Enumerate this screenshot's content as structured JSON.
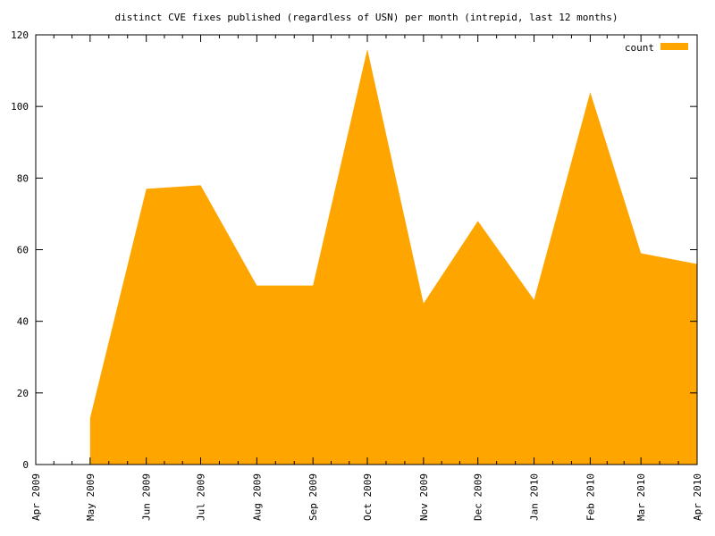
{
  "chart_data": {
    "type": "area",
    "title": "distinct CVE fixes published (regardless of USN) per month (intrepid, last 12 months)",
    "xlabel": "",
    "ylabel": "",
    "x_ticks": [
      "Apr 2009",
      "May 2009",
      "Jun 2009",
      "Jul 2009",
      "Aug 2009",
      "Sep 2009",
      "Oct 2009",
      "Nov 2009",
      "Dec 2009",
      "Jan 2010",
      "Feb 2010",
      "Mar 2010",
      "Apr 2010"
    ],
    "xlim": [
      "2009-04-01",
      "2010-04-01"
    ],
    "ylim": [
      0,
      120
    ],
    "y_ticks": [
      0,
      20,
      40,
      60,
      80,
      100,
      120
    ],
    "y_tick_labels": [
      "0",
      "20",
      "40",
      "60",
      "80",
      "100",
      "120"
    ],
    "grid": false,
    "legend": "top-right",
    "series": [
      {
        "name": "count",
        "color": "#ffa500",
        "points": [
          {
            "x": "2009-05-01",
            "y": 13
          },
          {
            "x": "2009-06-01",
            "y": 77
          },
          {
            "x": "2009-07-01",
            "y": 78
          },
          {
            "x": "2009-08-01",
            "y": 50
          },
          {
            "x": "2009-09-01",
            "y": 50
          },
          {
            "x": "2009-10-01",
            "y": 116
          },
          {
            "x": "2009-11-01",
            "y": 45
          },
          {
            "x": "2009-12-01",
            "y": 68
          },
          {
            "x": "2010-01-01",
            "y": 46
          },
          {
            "x": "2010-02-01",
            "y": 104
          },
          {
            "x": "2010-03-01",
            "y": 59
          },
          {
            "x": "2010-04-01",
            "y": 56
          }
        ]
      }
    ]
  }
}
